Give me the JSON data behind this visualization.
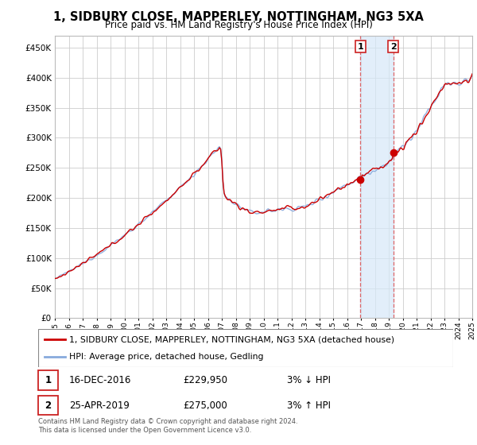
{
  "title": "1, SIDBURY CLOSE, MAPPERLEY, NOTTINGHAM, NG3 5XA",
  "subtitle": "Price paid vs. HM Land Registry's House Price Index (HPI)",
  "property_label": "1, SIDBURY CLOSE, MAPPERLEY, NOTTINGHAM, NG3 5XA (detached house)",
  "hpi_label": "HPI: Average price, detached house, Gedling",
  "annotation1": {
    "num": "1",
    "date": "16-DEC-2016",
    "price": "£229,950",
    "note": "3% ↓ HPI"
  },
  "annotation2": {
    "num": "2",
    "date": "25-APR-2019",
    "price": "£275,000",
    "note": "3% ↑ HPI"
  },
  "footer": "Contains HM Land Registry data © Crown copyright and database right 2024.\nThis data is licensed under the Open Government Licence v3.0.",
  "property_color": "#cc0000",
  "hpi_color": "#88aadd",
  "vline_color": "#dd4444",
  "shade_color": "#d6e8f8",
  "ylim": [
    0,
    470000
  ],
  "yticks": [
    0,
    50000,
    100000,
    150000,
    200000,
    250000,
    300000,
    350000,
    400000,
    450000
  ],
  "start_year": 1995,
  "end_year": 2025,
  "sale1_year": 2016.96,
  "sale2_year": 2019.32,
  "sale1_price": 229950,
  "sale2_price": 275000,
  "background_color": "#ffffff",
  "plot_bg_color": "#ffffff",
  "grid_color": "#cccccc"
}
